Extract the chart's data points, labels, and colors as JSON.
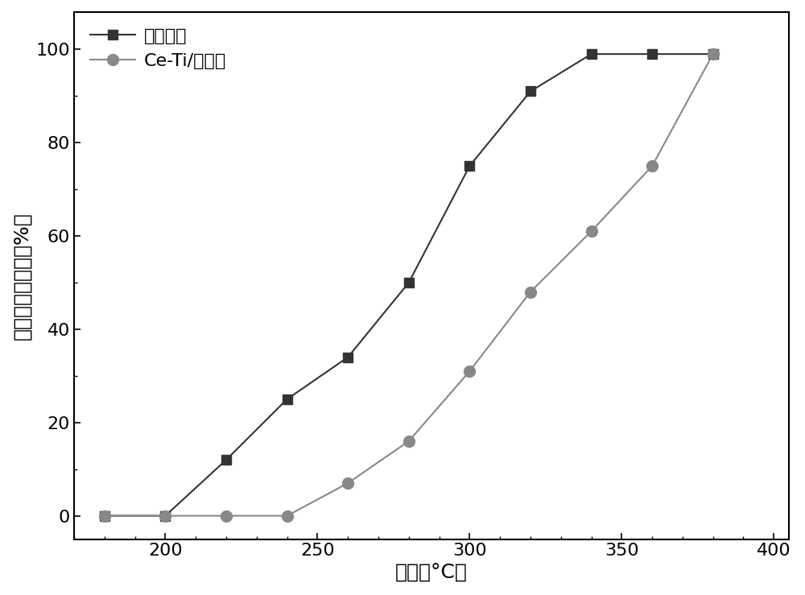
{
  "series1_label": "本催化剂",
  "series1_x": [
    180,
    200,
    220,
    240,
    260,
    280,
    300,
    320,
    340,
    360,
    380
  ],
  "series1_y": [
    0,
    0,
    12,
    25,
    34,
    50,
    75,
    91,
    99,
    99,
    99
  ],
  "series1_color": "#333333",
  "series1_marker": "s",
  "series1_markersize": 9,
  "series2_label": "Ce-Ti/粉煤灰",
  "series2_x": [
    180,
    200,
    220,
    240,
    260,
    280,
    300,
    320,
    340,
    360,
    380
  ],
  "series2_y": [
    0,
    0,
    0,
    0,
    7,
    16,
    31,
    48,
    61,
    75,
    99
  ],
  "series2_color": "#888888",
  "series2_marker": "o",
  "series2_markersize": 10,
  "xlabel": "温度（°C）",
  "ylabel": "二氯甲烷去除率（%）",
  "xlim": [
    170,
    405
  ],
  "ylim": [
    -5,
    108
  ],
  "xticks": [
    200,
    250,
    300,
    350,
    400
  ],
  "yticks": [
    0,
    20,
    40,
    60,
    80,
    100
  ],
  "linewidth": 1.5,
  "background_color": "#ffffff",
  "legend_loc": "upper left",
  "legend_fontsize": 16,
  "tick_fontsize": 16,
  "label_fontsize": 18
}
